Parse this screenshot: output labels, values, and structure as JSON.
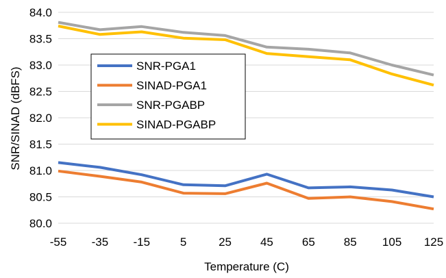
{
  "chart_data": {
    "type": "line",
    "xlabel": "Temperature (C)",
    "ylabel": "SNR/SINAD (dBFS)",
    "x": [
      -55,
      -35,
      -15,
      5,
      25,
      45,
      65,
      85,
      105,
      125
    ],
    "ylim": [
      80.0,
      84.0
    ],
    "yticks": [
      "80.0",
      "80.5",
      "81.0",
      "81.5",
      "82.0",
      "82.5",
      "83.0",
      "83.5",
      "84.0"
    ],
    "grid": "horizontal",
    "legend_position": "left-center (inside plot)",
    "series": [
      {
        "name": "SNR-PGA1",
        "color": "#4472C4",
        "values": [
          81.15,
          81.06,
          80.92,
          80.73,
          80.71,
          80.93,
          80.67,
          80.69,
          80.63,
          80.5
        ]
      },
      {
        "name": "SINAD-PGA1",
        "color": "#ED7D31",
        "values": [
          80.99,
          80.89,
          80.78,
          80.57,
          80.56,
          80.76,
          80.47,
          80.5,
          80.41,
          80.27
        ]
      },
      {
        "name": "SNR-PGABP",
        "color": "#A5A5A5",
        "values": [
          83.81,
          83.67,
          83.73,
          83.62,
          83.56,
          83.34,
          83.3,
          83.23,
          83.0,
          82.81
        ]
      },
      {
        "name": "SINAD-PGABP",
        "color": "#FFC000",
        "values": [
          83.74,
          83.58,
          83.63,
          83.51,
          83.48,
          83.22,
          83.16,
          83.1,
          82.83,
          82.62
        ]
      }
    ]
  }
}
